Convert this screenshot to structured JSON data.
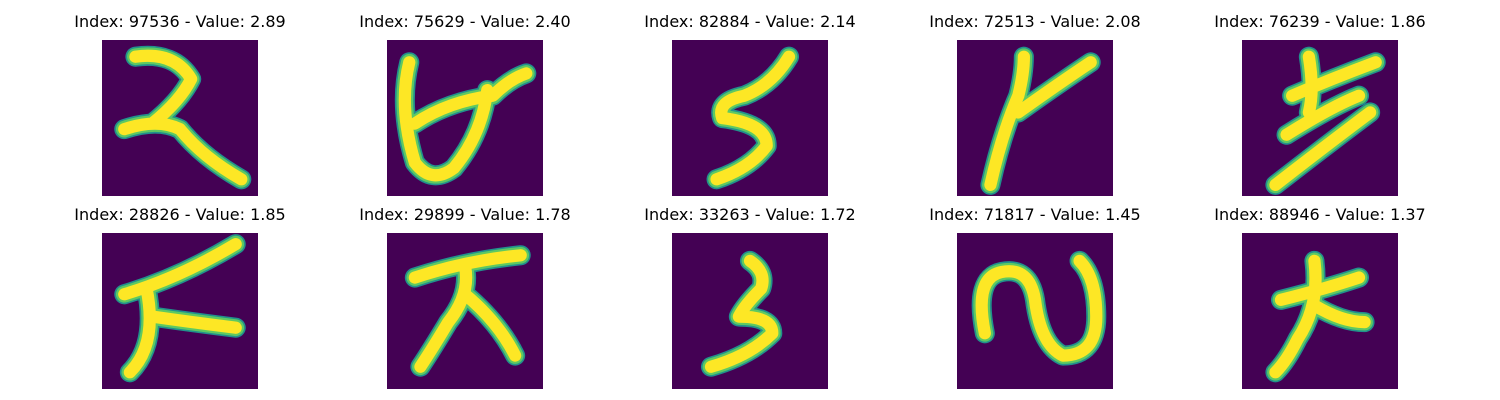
{
  "colors": {
    "background": "#440154",
    "stroke_outer": "#21918c",
    "stroke_mid": "#5ec962",
    "stroke_inner": "#fde725"
  },
  "panels": [
    {
      "title": "Index: 97536 - Value: 2.89",
      "glyph": "glyph-97536"
    },
    {
      "title": "Index: 75629 - Value: 2.40",
      "glyph": "glyph-75629"
    },
    {
      "title": "Index: 82884 - Value: 2.14",
      "glyph": "glyph-82884"
    },
    {
      "title": "Index: 72513 - Value: 2.08",
      "glyph": "glyph-72513"
    },
    {
      "title": "Index: 76239 - Value: 1.86",
      "glyph": "glyph-76239"
    },
    {
      "title": "Index: 28826 - Value: 1.85",
      "glyph": "glyph-28826"
    },
    {
      "title": "Index: 29899 - Value: 1.78",
      "glyph": "glyph-29899"
    },
    {
      "title": "Index: 33263 - Value: 1.72",
      "glyph": "glyph-33263"
    },
    {
      "title": "Index: 71817 - Value: 1.45",
      "glyph": "glyph-71817"
    },
    {
      "title": "Index: 88946 - Value: 1.37",
      "glyph": "glyph-88946"
    }
  ]
}
